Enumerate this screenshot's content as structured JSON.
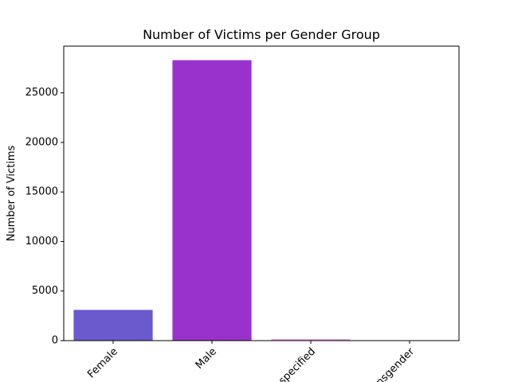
{
  "chart_data": {
    "type": "bar",
    "title": "Number of Victims per Gender Group",
    "xlabel": "",
    "ylabel": "Number of Victims",
    "categories": [
      "Female",
      "Male",
      "Unspecified",
      "Transgender"
    ],
    "values": [
      3100,
      28300,
      150,
      10
    ],
    "bar_colors": [
      "#6a5acd",
      "#9932cc",
      "#dda0dd",
      "#9370db"
    ],
    "ylim": [
      0,
      29715
    ],
    "yticks": [
      0,
      5000,
      10000,
      15000,
      20000,
      25000
    ],
    "grid": false,
    "legend": "none"
  }
}
